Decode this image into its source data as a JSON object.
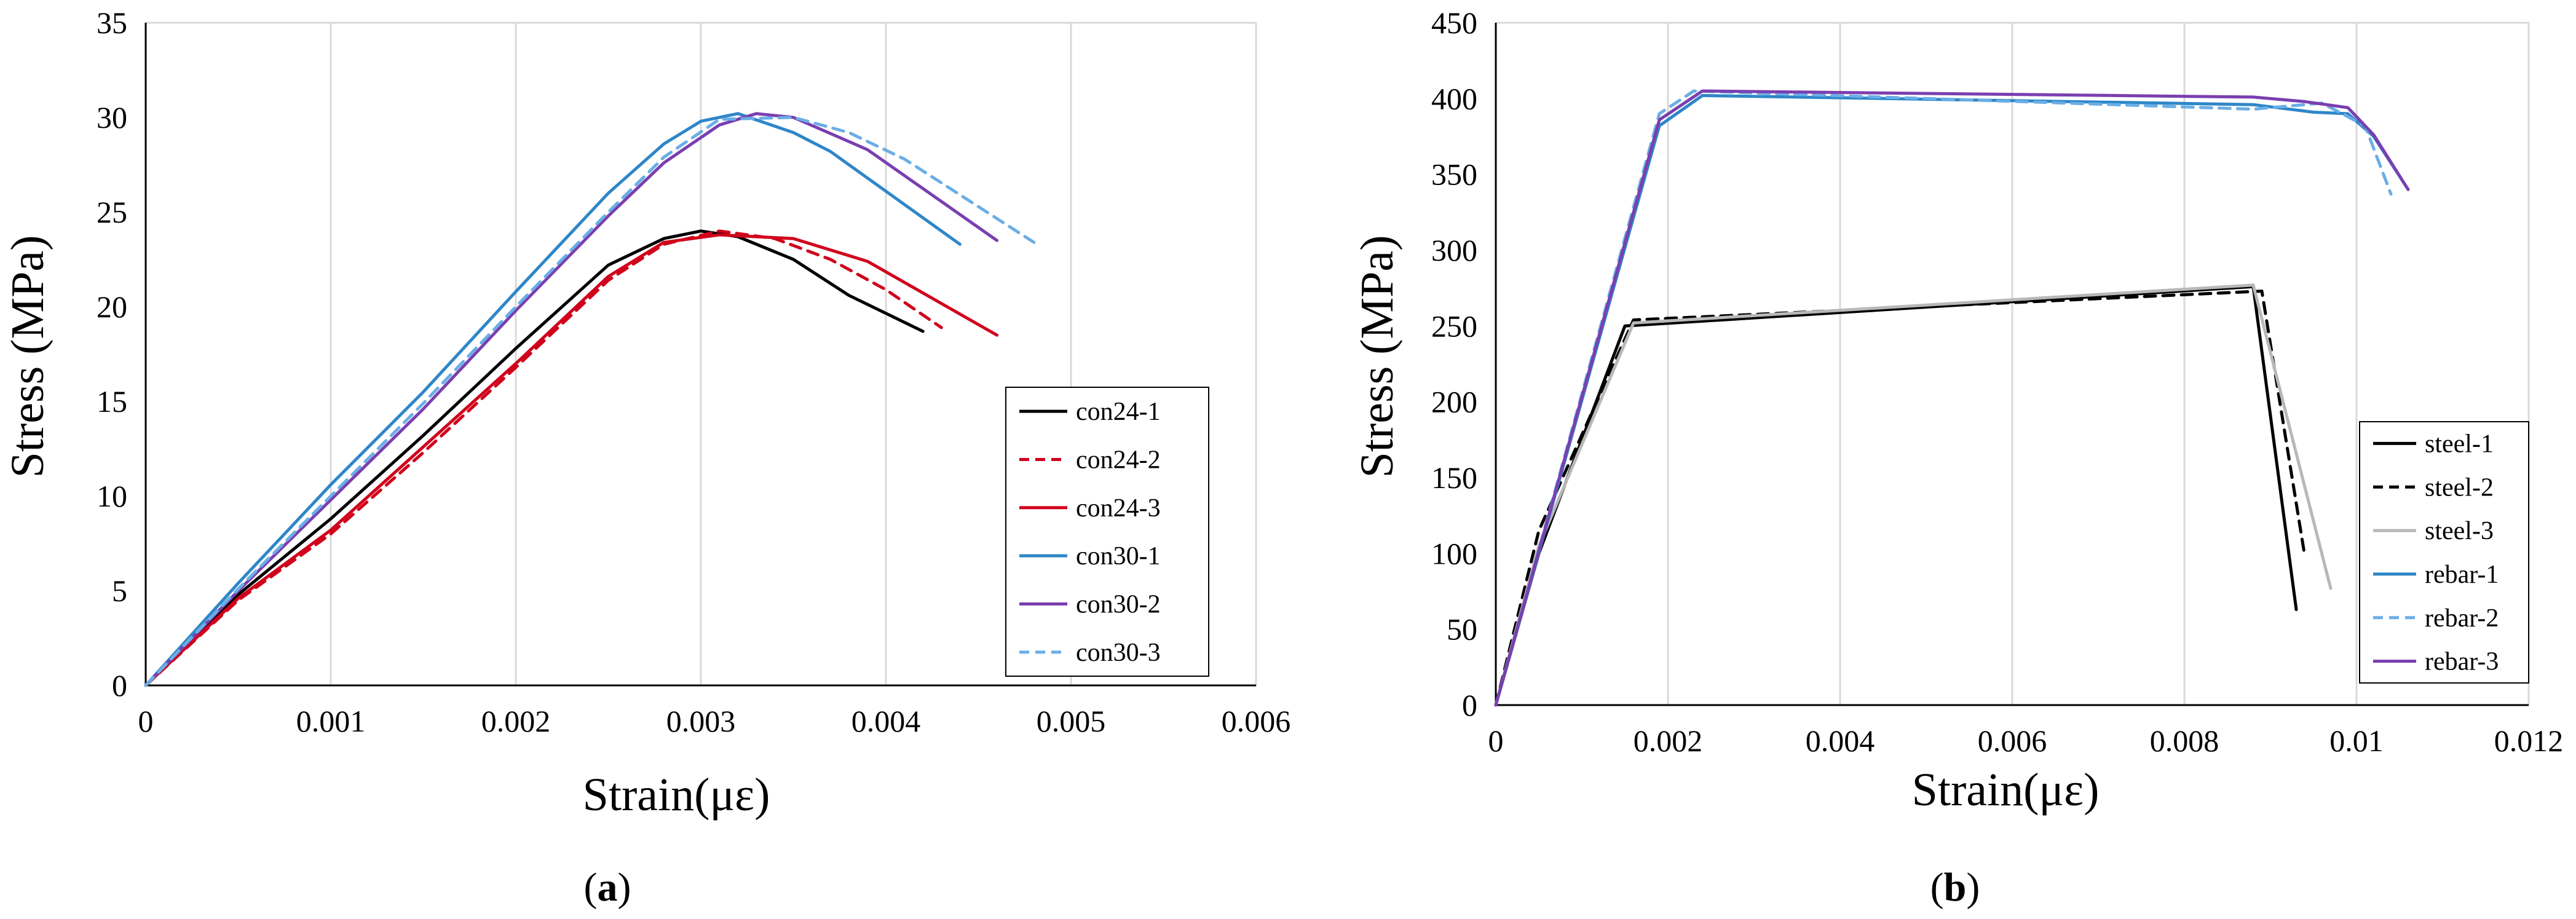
{
  "colors": {
    "black": "#000000",
    "red": "#d0021b",
    "blue": "#2e86c8",
    "light_blue": "#6aaee6",
    "purple": "#7a3fb0",
    "gray": "#b8b8b8",
    "grid": "#d9d9d9"
  },
  "chart_data": [
    {
      "id": "a",
      "type": "line",
      "panel_label": "(a)",
      "panel_letter": "a",
      "xlabel": "Strain(με)",
      "ylabel": "Stress (MPa)",
      "xlim": [
        0,
        0.006
      ],
      "ylim": [
        0,
        35
      ],
      "xticks": [
        0,
        0.001,
        0.002,
        0.003,
        0.004,
        0.005,
        0.006
      ],
      "xtick_labels": [
        "0",
        "0.001",
        "0.002",
        "0.003",
        "0.004",
        "0.005",
        "0.006"
      ],
      "yticks": [
        0,
        5,
        10,
        15,
        20,
        25,
        30,
        35
      ],
      "ytick_labels": [
        "0",
        "5",
        "10",
        "15",
        "20",
        "25",
        "30",
        "35"
      ],
      "grid": "vertical",
      "legend_position": "bottom-right",
      "series": [
        {
          "name": "con24-1",
          "color": "#000000",
          "dash": "solid",
          "x": [
            0,
            0.0005,
            0.001,
            0.0015,
            0.002,
            0.0025,
            0.0028,
            0.003,
            0.0032,
            0.0035,
            0.0038,
            0.0042
          ],
          "y": [
            0,
            4.8,
            8.8,
            13.2,
            17.8,
            22.2,
            23.6,
            24.0,
            23.7,
            22.5,
            20.6,
            18.7
          ]
        },
        {
          "name": "con24-2",
          "color": "#d0021b",
          "dash": "dashed",
          "x": [
            0,
            0.0005,
            0.001,
            0.0015,
            0.002,
            0.0025,
            0.0028,
            0.0031,
            0.0034,
            0.0037,
            0.004,
            0.0043
          ],
          "y": [
            0,
            4.5,
            8.0,
            12.3,
            16.8,
            21.4,
            23.3,
            24.0,
            23.6,
            22.5,
            20.9,
            18.9
          ]
        },
        {
          "name": "con24-3",
          "color": "#d0021b",
          "dash": "solid",
          "x": [
            0,
            0.0005,
            0.001,
            0.0015,
            0.002,
            0.0025,
            0.0028,
            0.0031,
            0.0035,
            0.0039,
            0.0046
          ],
          "y": [
            0,
            4.6,
            8.2,
            12.6,
            17.0,
            21.6,
            23.4,
            23.8,
            23.6,
            22.4,
            18.5
          ]
        },
        {
          "name": "con30-1",
          "color": "#2e86c8",
          "dash": "solid",
          "x": [
            0,
            0.0005,
            0.001,
            0.0015,
            0.002,
            0.0025,
            0.0028,
            0.003,
            0.0032,
            0.0035,
            0.0037,
            0.0044
          ],
          "y": [
            0,
            5.4,
            10.6,
            15.5,
            20.8,
            26.0,
            28.6,
            29.8,
            30.2,
            29.2,
            28.2,
            23.3
          ]
        },
        {
          "name": "con30-2",
          "color": "#7a3fb0",
          "dash": "solid",
          "x": [
            0,
            0.0005,
            0.001,
            0.0015,
            0.002,
            0.0025,
            0.0028,
            0.0031,
            0.0033,
            0.0035,
            0.0039,
            0.0046
          ],
          "y": [
            0,
            5.0,
            9.8,
            14.6,
            19.8,
            24.8,
            27.6,
            29.6,
            30.2,
            30.0,
            28.3,
            23.5
          ]
        },
        {
          "name": "con30-3",
          "color": "#6aaee6",
          "dash": "dashed",
          "x": [
            0,
            0.0005,
            0.001,
            0.0015,
            0.002,
            0.0025,
            0.0028,
            0.0031,
            0.0035,
            0.0038,
            0.0041,
            0.0048
          ],
          "y": [
            0,
            5.1,
            10.0,
            14.9,
            20.0,
            25.0,
            27.9,
            29.9,
            30.0,
            29.2,
            27.8,
            23.4
          ]
        }
      ]
    },
    {
      "id": "b",
      "type": "line",
      "panel_label": "(b)",
      "panel_letter": "b",
      "xlabel": "Strain(με)",
      "ylabel": "Stress (MPa)",
      "xlim": [
        0,
        0.012
      ],
      "ylim": [
        0,
        450
      ],
      "xticks": [
        0,
        0.002,
        0.004,
        0.006,
        0.008,
        0.01,
        0.012
      ],
      "xtick_labels": [
        "0",
        "0.002",
        "0.004",
        "0.006",
        "0.008",
        "0.01",
        "0.012"
      ],
      "yticks": [
        0,
        50,
        100,
        150,
        200,
        250,
        300,
        350,
        400,
        450
      ],
      "ytick_labels": [
        "0",
        "50",
        "100",
        "150",
        "200",
        "250",
        "300",
        "350",
        "400",
        "450"
      ],
      "grid": "vertical",
      "legend_position": "bottom-right",
      "series": [
        {
          "name": "steel-1",
          "color": "#000000",
          "dash": "solid",
          "x": [
            0,
            0.0005,
            0.0015,
            0.0088,
            0.0093
          ],
          "y": [
            0,
            100,
            250,
            276,
            63
          ]
        },
        {
          "name": "steel-2",
          "color": "#000000",
          "dash": "dashed",
          "x": [
            0,
            0.0005,
            0.0016,
            0.0089,
            0.0094
          ],
          "y": [
            0,
            115,
            254,
            273,
            98
          ]
        },
        {
          "name": "steel-3",
          "color": "#b8b8b8",
          "dash": "solid",
          "x": [
            0,
            0.0005,
            0.0016,
            0.0088,
            0.0097
          ],
          "y": [
            0,
            105,
            252,
            277,
            77
          ]
        },
        {
          "name": "rebar-1",
          "color": "#2e86c8",
          "dash": "solid",
          "x": [
            0,
            0.0019,
            0.0024,
            0.0088,
            0.0095,
            0.0099,
            0.0102,
            0.0106
          ],
          "y": [
            0,
            382,
            402,
            396,
            391,
            390,
            375,
            340
          ]
        },
        {
          "name": "rebar-2",
          "color": "#6aaee6",
          "dash": "dashed",
          "x": [
            0,
            0.0019,
            0.0023,
            0.0088,
            0.0096,
            0.0101,
            0.0104
          ],
          "y": [
            0,
            390,
            405,
            393,
            397,
            382,
            337
          ]
        },
        {
          "name": "rebar-3",
          "color": "#7a3fb0",
          "dash": "solid",
          "x": [
            0,
            0.0019,
            0.0024,
            0.0088,
            0.0094,
            0.0099,
            0.0102,
            0.0106
          ],
          "y": [
            0,
            386,
            405,
            401,
            398,
            394,
            376,
            340
          ]
        }
      ]
    }
  ]
}
